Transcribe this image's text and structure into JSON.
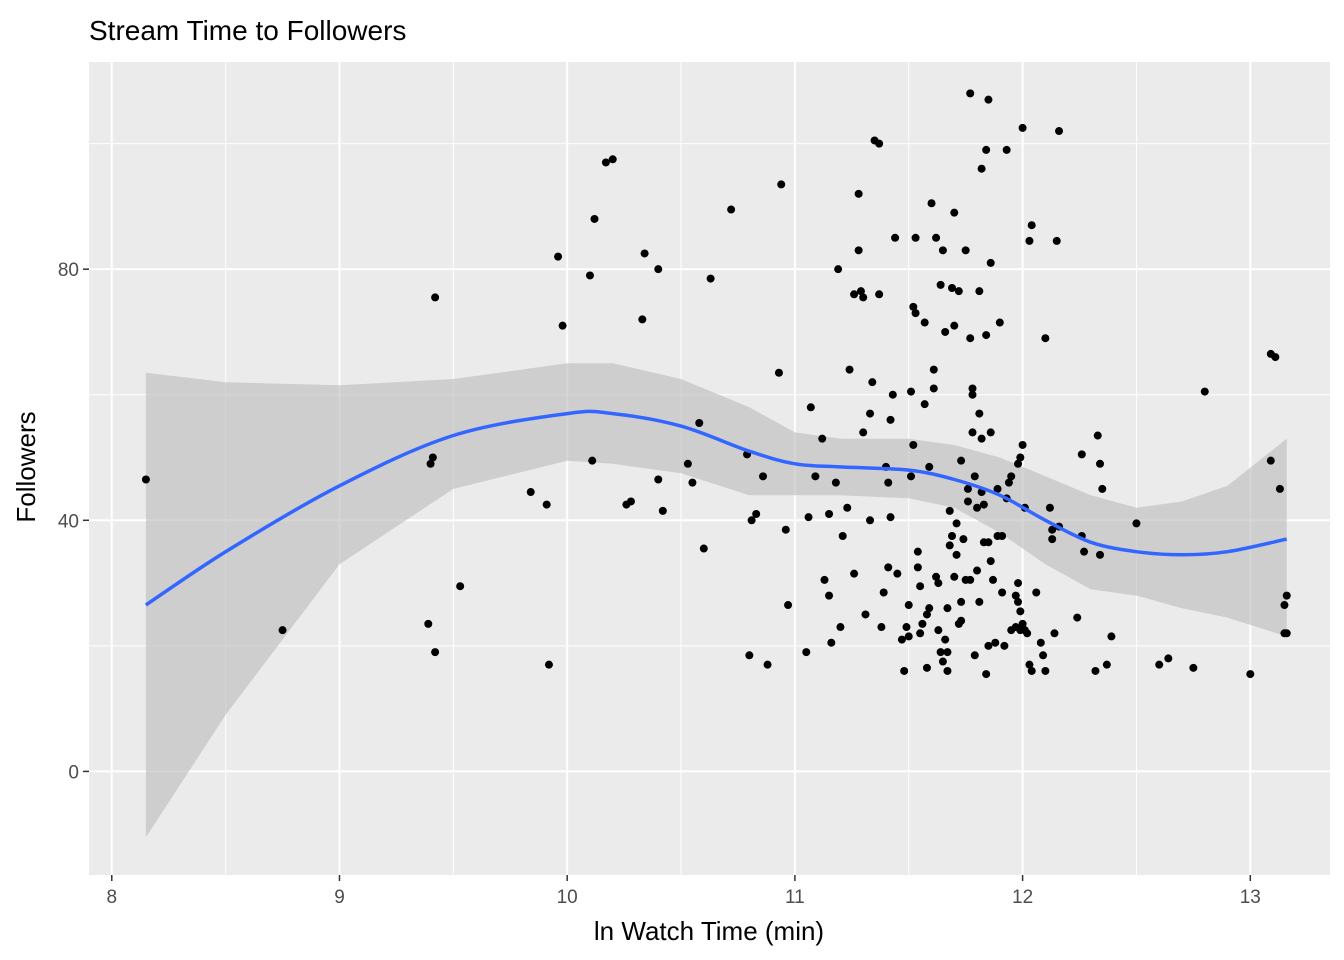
{
  "chart_data": {
    "type": "scatter",
    "title": "Stream Time to Followers",
    "xlabel": "ln Watch Time (min)",
    "ylabel": "Followers",
    "xlim": [
      7.9,
      13.35
    ],
    "ylim": [
      -16.5,
      113
    ],
    "x_ticks": [
      8,
      9,
      10,
      11,
      12,
      13
    ],
    "y_ticks": [
      0,
      40,
      80
    ],
    "grid": true,
    "panel_background": "#ebebeb",
    "point_color": "#000000",
    "smooth_color": "#3366ff",
    "ribbon_color": "#bfbfbf",
    "points": [
      [
        8.15,
        46.5
      ],
      [
        8.75,
        22.5
      ],
      [
        9.39,
        23.5
      ],
      [
        9.4,
        49
      ],
      [
        9.41,
        50
      ],
      [
        9.42,
        19
      ],
      [
        9.42,
        75.5
      ],
      [
        9.53,
        29.5
      ],
      [
        9.84,
        44.5
      ],
      [
        9.91,
        42.5
      ],
      [
        9.92,
        17
      ],
      [
        9.96,
        82
      ],
      [
        9.98,
        71
      ],
      [
        10.1,
        79
      ],
      [
        10.11,
        49.5
      ],
      [
        10.12,
        88
      ],
      [
        10.17,
        97
      ],
      [
        10.2,
        97.5
      ],
      [
        10.26,
        42.5
      ],
      [
        10.28,
        43
      ],
      [
        10.34,
        82.5
      ],
      [
        10.33,
        72
      ],
      [
        10.4,
        80
      ],
      [
        10.4,
        46.5
      ],
      [
        10.42,
        41.5
      ],
      [
        10.53,
        49
      ],
      [
        10.55,
        46
      ],
      [
        10.58,
        55.5
      ],
      [
        10.6,
        35.5
      ],
      [
        10.63,
        78.5
      ],
      [
        10.72,
        89.5
      ],
      [
        10.79,
        50.5
      ],
      [
        10.8,
        18.5
      ],
      [
        10.81,
        40
      ],
      [
        10.83,
        41
      ],
      [
        10.86,
        47
      ],
      [
        10.88,
        17
      ],
      [
        10.93,
        63.5
      ],
      [
        10.94,
        93.5
      ],
      [
        10.97,
        26.5
      ],
      [
        10.96,
        38.5
      ],
      [
        11.05,
        19
      ],
      [
        11.07,
        58
      ],
      [
        11.06,
        40.5
      ],
      [
        11.09,
        47
      ],
      [
        11.12,
        53
      ],
      [
        11.13,
        30.5
      ],
      [
        11.15,
        28
      ],
      [
        11.15,
        41
      ],
      [
        11.16,
        20.5
      ],
      [
        11.18,
        46
      ],
      [
        11.2,
        23
      ],
      [
        11.21,
        37.5
      ],
      [
        11.19,
        80
      ],
      [
        11.23,
        42
      ],
      [
        11.24,
        64
      ],
      [
        11.26,
        76
      ],
      [
        11.26,
        31.5
      ],
      [
        11.28,
        83
      ],
      [
        11.28,
        92
      ],
      [
        11.29,
        76.5
      ],
      [
        11.3,
        75.5
      ],
      [
        11.3,
        54
      ],
      [
        11.31,
        25
      ],
      [
        11.33,
        57
      ],
      [
        11.33,
        40
      ],
      [
        11.34,
        62
      ],
      [
        11.35,
        100.5
      ],
      [
        11.37,
        76
      ],
      [
        11.37,
        100
      ],
      [
        11.38,
        23
      ],
      [
        11.39,
        28.5
      ],
      [
        11.4,
        48.5
      ],
      [
        11.41,
        32.5
      ],
      [
        11.41,
        46
      ],
      [
        11.42,
        40.5
      ],
      [
        11.42,
        56
      ],
      [
        11.43,
        60
      ],
      [
        11.44,
        85
      ],
      [
        11.45,
        31.5
      ],
      [
        11.47,
        21
      ],
      [
        11.48,
        16
      ],
      [
        11.49,
        23
      ],
      [
        11.5,
        26.5
      ],
      [
        11.5,
        21.5
      ],
      [
        11.51,
        47
      ],
      [
        11.51,
        60.5
      ],
      [
        11.52,
        74
      ],
      [
        11.52,
        52
      ],
      [
        11.53,
        85
      ],
      [
        11.53,
        73
      ],
      [
        11.54,
        35
      ],
      [
        11.54,
        32.5
      ],
      [
        11.55,
        29.5
      ],
      [
        11.55,
        22
      ],
      [
        11.56,
        23.5
      ],
      [
        11.57,
        71.5
      ],
      [
        11.57,
        58.5
      ],
      [
        11.58,
        16.5
      ],
      [
        11.58,
        25
      ],
      [
        11.59,
        26
      ],
      [
        11.59,
        48.5
      ],
      [
        11.6,
        90.5
      ],
      [
        11.61,
        61
      ],
      [
        11.61,
        64
      ],
      [
        11.62,
        85
      ],
      [
        11.62,
        31
      ],
      [
        11.63,
        30
      ],
      [
        11.63,
        22.5
      ],
      [
        11.64,
        77.5
      ],
      [
        11.64,
        19
      ],
      [
        11.65,
        83
      ],
      [
        11.65,
        17.5
      ],
      [
        11.66,
        21
      ],
      [
        11.66,
        70
      ],
      [
        11.67,
        19
      ],
      [
        11.67,
        16
      ],
      [
        11.67,
        26
      ],
      [
        11.68,
        41.5
      ],
      [
        11.68,
        36
      ],
      [
        11.69,
        77
      ],
      [
        11.69,
        37.5
      ],
      [
        11.7,
        89
      ],
      [
        11.7,
        71
      ],
      [
        11.7,
        31
      ],
      [
        11.71,
        34.5
      ],
      [
        11.71,
        39.5
      ],
      [
        11.72,
        76.5
      ],
      [
        11.72,
        23.5
      ],
      [
        11.73,
        27
      ],
      [
        11.73,
        24
      ],
      [
        11.73,
        49.5
      ],
      [
        11.74,
        37
      ],
      [
        11.75,
        30.5
      ],
      [
        11.75,
        83
      ],
      [
        11.76,
        43
      ],
      [
        11.76,
        45
      ],
      [
        11.77,
        69
      ],
      [
        11.77,
        108
      ],
      [
        11.77,
        30.5
      ],
      [
        11.78,
        61
      ],
      [
        11.78,
        60
      ],
      [
        11.78,
        54
      ],
      [
        11.79,
        47
      ],
      [
        11.79,
        18.5
      ],
      [
        11.8,
        42
      ],
      [
        11.8,
        32
      ],
      [
        11.81,
        76.5
      ],
      [
        11.81,
        27
      ],
      [
        11.81,
        57
      ],
      [
        11.82,
        53
      ],
      [
        11.82,
        96
      ],
      [
        11.82,
        44.5
      ],
      [
        11.83,
        36.5
      ],
      [
        11.83,
        42.5
      ],
      [
        11.84,
        99
      ],
      [
        11.84,
        69.5
      ],
      [
        11.84,
        15.5
      ],
      [
        11.85,
        107
      ],
      [
        11.85,
        36.5
      ],
      [
        11.85,
        20
      ],
      [
        11.86,
        81
      ],
      [
        11.86,
        54
      ],
      [
        11.86,
        33.5
      ],
      [
        11.87,
        30.5
      ],
      [
        11.88,
        20.5
      ],
      [
        11.89,
        37.5
      ],
      [
        11.89,
        45
      ],
      [
        11.9,
        71.5
      ],
      [
        11.91,
        28.5
      ],
      [
        11.91,
        37.5
      ],
      [
        11.92,
        20
      ],
      [
        11.93,
        99
      ],
      [
        11.93,
        43.5
      ],
      [
        11.94,
        46
      ],
      [
        11.95,
        22.5
      ],
      [
        11.95,
        47
      ],
      [
        11.97,
        28
      ],
      [
        11.97,
        23
      ],
      [
        11.98,
        30
      ],
      [
        11.98,
        27
      ],
      [
        11.98,
        49
      ],
      [
        11.99,
        50
      ],
      [
        11.99,
        25.5
      ],
      [
        11.99,
        22.5
      ],
      [
        12,
        102.5
      ],
      [
        12,
        23.5
      ],
      [
        12,
        52
      ],
      [
        12.01,
        42
      ],
      [
        12.01,
        22.5
      ],
      [
        12.02,
        22
      ],
      [
        12.03,
        17
      ],
      [
        12.03,
        84.5
      ],
      [
        12.04,
        87
      ],
      [
        12.04,
        16
      ],
      [
        12.06,
        28.5
      ],
      [
        12.08,
        20.5
      ],
      [
        12.09,
        18.5
      ],
      [
        12.1,
        69
      ],
      [
        12.1,
        16
      ],
      [
        12.12,
        42
      ],
      [
        12.13,
        37
      ],
      [
        12.13,
        38.5
      ],
      [
        12.14,
        22
      ],
      [
        12.15,
        84.5
      ],
      [
        12.16,
        102
      ],
      [
        12.16,
        39
      ],
      [
        12.24,
        24.5
      ],
      [
        12.26,
        50.5
      ],
      [
        12.26,
        37.5
      ],
      [
        12.27,
        35
      ],
      [
        12.32,
        16
      ],
      [
        12.33,
        53.5
      ],
      [
        12.34,
        49
      ],
      [
        12.34,
        34.5
      ],
      [
        12.35,
        45
      ],
      [
        12.37,
        17
      ],
      [
        12.39,
        21.5
      ],
      [
        12.5,
        39.5
      ],
      [
        12.6,
        17
      ],
      [
        12.64,
        18
      ],
      [
        12.75,
        16.5
      ],
      [
        12.8,
        60.5
      ],
      [
        13,
        15.5
      ],
      [
        13.09,
        49.5
      ],
      [
        13.09,
        66.5
      ],
      [
        13.11,
        66
      ],
      [
        13.13,
        45
      ],
      [
        13.15,
        26.5
      ],
      [
        13.15,
        22
      ],
      [
        13.16,
        22
      ],
      [
        13.16,
        28
      ]
    ],
    "smooth": {
      "x": [
        8.15,
        8.5,
        9,
        9.5,
        10,
        10.2,
        10.5,
        10.8,
        11,
        11.2,
        11.5,
        11.7,
        11.9,
        12.1,
        12.3,
        12.5,
        12.7,
        12.9,
        13.16
      ],
      "y": [
        26.5,
        35,
        45.5,
        53.5,
        57,
        57,
        55,
        51,
        49,
        48.5,
        48,
        46.5,
        44,
        40,
        36.5,
        35,
        34.5,
        35,
        37
      ],
      "upper": [
        63.5,
        62,
        61.5,
        62.5,
        65,
        65,
        62.5,
        58,
        54,
        53,
        53,
        52,
        50,
        47,
        44,
        42,
        43,
        45.5,
        53
      ],
      "lower": [
        -10.5,
        9,
        33,
        45,
        49.5,
        49,
        47.5,
        44,
        44,
        44,
        43.5,
        42,
        38,
        33,
        29,
        28,
        26,
        24.5,
        21.5
      ]
    }
  }
}
